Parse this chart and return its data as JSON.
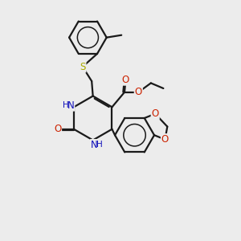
{
  "bg_color": "#ececec",
  "bond_color": "#1a1a1a",
  "bond_width": 1.6,
  "N_color": "#1111bb",
  "O_color": "#cc2200",
  "S_color": "#aaaa00",
  "font_size": 8.5,
  "figsize": [
    3.0,
    3.0
  ],
  "dpi": 100,
  "xlim": [
    0,
    10
  ],
  "ylim": [
    0,
    10
  ]
}
